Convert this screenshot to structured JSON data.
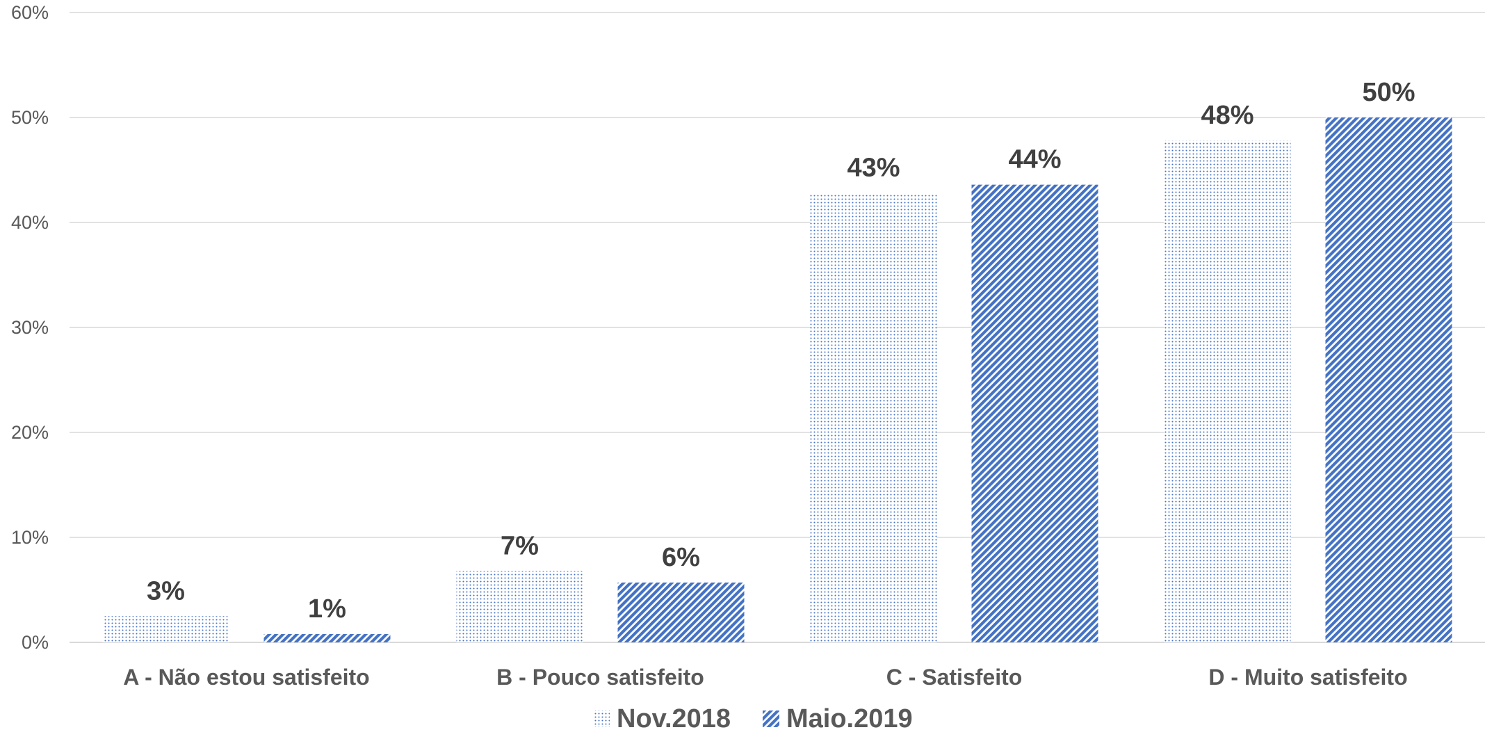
{
  "chart_data": {
    "type": "bar",
    "categories": [
      "A - Não estou satisfeito",
      "B - Pouco satisfeito",
      "C - Satisfeito",
      "D - Muito satisfeito"
    ],
    "series": [
      {
        "name": "Nov.2018",
        "values": [
          2.5,
          6.8,
          42.8,
          47.8
        ],
        "labels": [
          "3%",
          "7%",
          "43%",
          "48%"
        ],
        "color": "#4472c4",
        "pattern": "dots"
      },
      {
        "name": "Maio.2019",
        "values": [
          0.8,
          5.7,
          43.6,
          50.0
        ],
        "labels": [
          "1%",
          "6%",
          "44%",
          "50%"
        ],
        "color": "#4472c4",
        "pattern": "diagonal-stripes"
      }
    ],
    "yticks": [
      "0%",
      "10%",
      "20%",
      "30%",
      "40%",
      "50%",
      "60%"
    ],
    "ylim": [
      0,
      60
    ],
    "grid": true,
    "legend": "bottom-center"
  }
}
